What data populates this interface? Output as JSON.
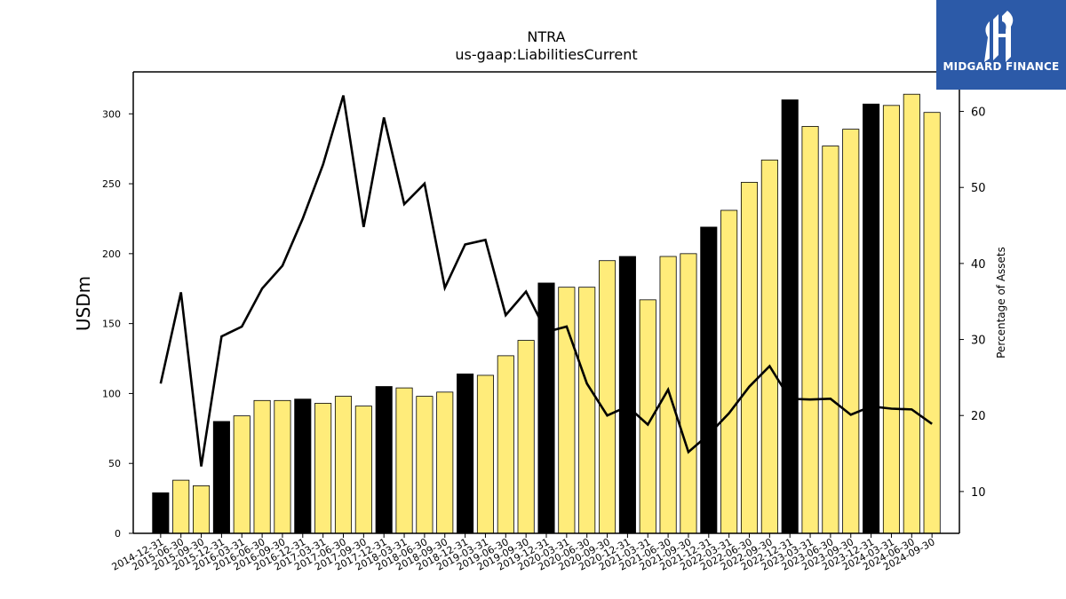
{
  "brand": {
    "name": "MIDGARD FINANCE",
    "bg_color": "#2c5aa8",
    "icon": "midgard-logo-icon"
  },
  "chart_data": {
    "type": "bar",
    "title": "NTRA",
    "subtitle": "us-gaap:LiabilitiesCurrent",
    "ylabel": "USDm",
    "y2label": "Percentage of Assets",
    "ylim": [
      0,
      330
    ],
    "y2lim": [
      4.5,
      65.2
    ],
    "yticks": [
      0,
      50,
      100,
      150,
      200,
      250,
      300
    ],
    "y2ticks": [
      10,
      20,
      30,
      40,
      50,
      60
    ],
    "grid": false,
    "colors": {
      "annual": "#000000",
      "quarterly": "#ffec7a",
      "line": "#000000"
    },
    "categories": [
      "2014-12-31",
      "2015-06-30",
      "2015-09-30",
      "2015-12-31",
      "2016-03-31",
      "2016-06-30",
      "2016-09-30",
      "2016-12-31",
      "2017-03-31",
      "2017-06-30",
      "2017-09-30",
      "2017-12-31",
      "2018-03-31",
      "2018-06-30",
      "2018-09-30",
      "2018-12-31",
      "2019-03-31",
      "2019-06-30",
      "2019-09-30",
      "2019-12-31",
      "2020-03-31",
      "2020-06-30",
      "2020-09-30",
      "2020-12-31",
      "2021-03-31",
      "2021-06-30",
      "2021-09-30",
      "2021-12-31",
      "2022-03-31",
      "2022-06-30",
      "2022-09-30",
      "2022-12-31",
      "2023-03-31",
      "2023-06-30",
      "2023-09-30",
      "2023-12-31",
      "2024-03-31",
      "2024-06-30",
      "2024-09-30"
    ],
    "series": [
      {
        "axis": "left",
        "values": [
          29,
          38,
          34,
          80,
          84,
          95,
          95,
          96,
          93,
          98,
          91,
          105,
          104,
          98,
          101,
          114,
          113,
          127,
          138,
          179,
          176,
          176,
          195,
          198,
          167,
          198,
          200,
          219,
          231,
          251,
          267,
          310,
          291,
          277,
          289,
          307,
          306,
          314,
          301
        ],
        "annual": [
          true,
          false,
          false,
          true,
          false,
          false,
          false,
          true,
          false,
          false,
          false,
          true,
          false,
          false,
          false,
          true,
          false,
          false,
          false,
          true,
          false,
          false,
          false,
          true,
          false,
          false,
          false,
          true,
          false,
          false,
          false,
          true,
          false,
          false,
          false,
          true,
          false,
          false,
          false
        ]
      },
      {
        "axis": "right",
        "values": [
          24.2,
          36.2,
          13.3,
          30.4,
          31.7,
          36.7,
          39.7,
          45.9,
          53.0,
          62.1,
          44.8,
          59.2,
          47.8,
          50.5,
          36.8,
          42.5,
          43.1,
          33.2,
          36.3,
          31.0,
          31.7,
          24.2,
          20.0,
          21.2,
          18.8,
          23.4,
          15.2,
          17.5,
          20.3,
          23.8,
          26.5,
          22.2,
          22.1,
          22.2,
          20.1,
          21.2,
          20.9,
          20.8,
          18.9
        ]
      }
    ]
  }
}
